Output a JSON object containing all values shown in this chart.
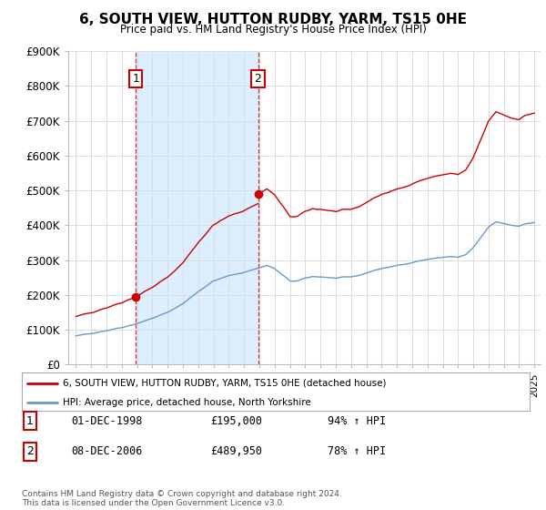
{
  "title": "6, SOUTH VIEW, HUTTON RUDBY, YARM, TS15 0HE",
  "subtitle": "Price paid vs. HM Land Registry's House Price Index (HPI)",
  "sale1_price": 195000,
  "sale1_pct": "94% ↑ HPI",
  "sale1_date_label": "01-DEC-1998",
  "sale2_price": 489950,
  "sale2_pct": "78% ↑ HPI",
  "sale2_date_label": "08-DEC-2006",
  "legend_line1": "6, SOUTH VIEW, HUTTON RUDBY, YARM, TS15 0HE (detached house)",
  "legend_line2": "HPI: Average price, detached house, North Yorkshire",
  "footer": "Contains HM Land Registry data © Crown copyright and database right 2024.\nThis data is licensed under the Open Government Licence v3.0.",
  "line_color_red": "#cc0000",
  "line_color_blue": "#6699cc",
  "shade_color": "#ddeeff",
  "bg_color": "#ffffff",
  "grid_color": "#dddddd",
  "ylim": [
    0,
    900000
  ],
  "yticks": [
    0,
    100000,
    200000,
    300000,
    400000,
    500000,
    600000,
    700000,
    800000,
    900000
  ],
  "sale1_year": 1999.0,
  "sale2_year": 2007.0
}
